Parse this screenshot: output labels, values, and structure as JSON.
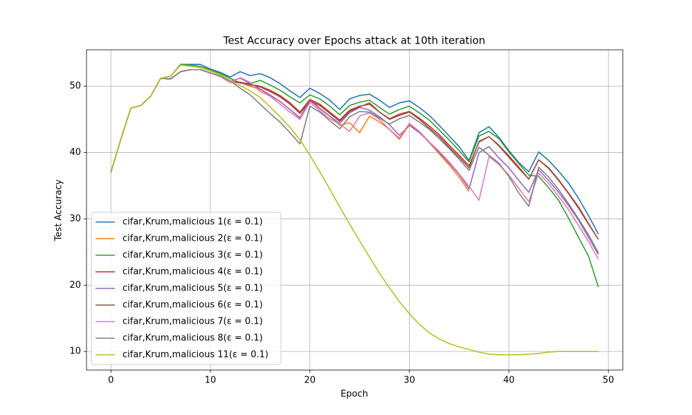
{
  "chart_data": {
    "type": "line",
    "title": "Test Accuracy over Epochs attack at 10th iteration",
    "xlabel": "Epoch",
    "ylabel": "Test Accuracy",
    "x": [
      0,
      1,
      2,
      3,
      4,
      5,
      6,
      7,
      8,
      9,
      10,
      11,
      12,
      13,
      14,
      15,
      16,
      17,
      18,
      19,
      20,
      21,
      22,
      23,
      24,
      25,
      26,
      27,
      28,
      29,
      30,
      31,
      32,
      33,
      34,
      35,
      36,
      37,
      38,
      39,
      40,
      41,
      42,
      43,
      44,
      45,
      46,
      47,
      48,
      49
    ],
    "xlim": [
      -2.45,
      51.45
    ],
    "ylim": [
      7.2,
      55.5
    ],
    "xticks": [
      0,
      10,
      20,
      30,
      40,
      50
    ],
    "yticks": [
      10,
      20,
      30,
      40,
      50
    ],
    "grid": true,
    "legend": "lower left",
    "series": [
      {
        "name": "cifar,Krum,malicious 1(ε = 0.1)",
        "color": "#1f77b4",
        "values": [
          37,
          42,
          46.7,
          47.1,
          48.5,
          51.2,
          51.5,
          53.3,
          53.3,
          53.3,
          52.6,
          52.1,
          51.4,
          52.2,
          51.6,
          51.9,
          51.3,
          50.4,
          49.3,
          48.3,
          49.7,
          48.9,
          47.9,
          46.5,
          48.1,
          48.6,
          48.8,
          47.9,
          46.8,
          47.5,
          47.8,
          46.8,
          45.6,
          44.1,
          42.5,
          40.9,
          38.8,
          43,
          43.9,
          42.3,
          40.3,
          38.5,
          37.1,
          40.1,
          38.8,
          37.2,
          35.4,
          33.1,
          30.5,
          27.7
        ]
      },
      {
        "name": "cifar,Krum,malicious 2(ε = 0.1)",
        "color": "#ff7f0e",
        "values": [
          37,
          42,
          46.7,
          47.1,
          48.5,
          51.2,
          51.1,
          52.2,
          52.5,
          52.5,
          52,
          51.5,
          50.8,
          50.6,
          50,
          49.5,
          48.6,
          47.7,
          46.5,
          45.3,
          48,
          46.7,
          45.5,
          44.1,
          44.5,
          43,
          45.5,
          44.6,
          43.5,
          42,
          44.2,
          43.1,
          41.5,
          39.8,
          38.1,
          36.3,
          34.1,
          null,
          null,
          null,
          null,
          null,
          null,
          null,
          null,
          null,
          null,
          null,
          null,
          null
        ]
      },
      {
        "name": "cifar,Krum,malicious 3(ε = 0.1)",
        "color": "#2ca02c",
        "values": [
          37,
          42,
          46.7,
          47.1,
          48.5,
          51.2,
          51.5,
          53.3,
          53.2,
          53,
          52.5,
          51.9,
          51.2,
          50.5,
          50.4,
          50.9,
          50.2,
          49.4,
          48.4,
          47.5,
          48.7,
          48.1,
          47,
          45.7,
          47.1,
          47.6,
          47.9,
          46.8,
          45.8,
          46.5,
          47,
          46,
          44.9,
          43.4,
          41.9,
          40.3,
          38.6,
          42.5,
          43.2,
          42.1,
          40.1,
          38.3,
          36.6,
          36.4,
          34.7,
          32.8,
          30.1,
          27.2,
          24.4,
          19.7
        ]
      },
      {
        "name": "cifar,Krum,malicious 4(ε = 0.1)",
        "color": "#d62728",
        "values": [
          37,
          42,
          46.7,
          47.1,
          48.5,
          51.2,
          51.1,
          52.2,
          52.5,
          52.5,
          52,
          51.5,
          50.8,
          50.6,
          50.3,
          50,
          49.4,
          48.6,
          47.5,
          46.1,
          48,
          47.3,
          46.1,
          44.9,
          46.4,
          47,
          47.3,
          46.1,
          45.1,
          45.8,
          46.2,
          45.2,
          44,
          42.7,
          41.1,
          39.6,
          38,
          41.6,
          42.4,
          41.1,
          39.5,
          37.8,
          36,
          38.9,
          37.7,
          35.9,
          33.9,
          31.8,
          29.3,
          26.9
        ]
      },
      {
        "name": "cifar,Krum,malicious 5(ε = 0.1)",
        "color": "#9467bd",
        "values": [
          37,
          42,
          46.7,
          47.1,
          48.5,
          51.2,
          51.1,
          52.2,
          52.5,
          52.5,
          52,
          51.5,
          50.8,
          51.2,
          50.4,
          49.6,
          48.7,
          47.7,
          46.5,
          45.2,
          47.9,
          46.6,
          45.5,
          44.4,
          46,
          46.8,
          46.4,
          45.4,
          44.2,
          42.6,
          44.1,
          43,
          41.6,
          40,
          38.4,
          36.7,
          34.5,
          40,
          40.9,
          39.2,
          37.7,
          35.8,
          34,
          37.4,
          35.8,
          34,
          32,
          29.8,
          27.2,
          24.6
        ]
      },
      {
        "name": "cifar,Krum,malicious 6(ε = 0.1)",
        "color": "#8c564b",
        "values": [
          37,
          42,
          46.7,
          47.1,
          48.5,
          51.2,
          51.1,
          52.2,
          52.5,
          52.5,
          52,
          51.5,
          50.8,
          50.5,
          50.2,
          49.9,
          49.2,
          48.4,
          47.3,
          45.9,
          47.8,
          47.1,
          45.9,
          44.7,
          46.2,
          46.9,
          47.5,
          46.1,
          45,
          45.6,
          46.1,
          45,
          43.7,
          42.4,
          40.8,
          39.3,
          37.7,
          41.7,
          42.4,
          41,
          39.3,
          37.6,
          36,
          38.9,
          37.6,
          35.8,
          33.8,
          31.6,
          29.2,
          26.9
        ]
      },
      {
        "name": "cifar,Krum,malicious 7(ε = 0.1)",
        "color": "#e377c2",
        "values": [
          37,
          42,
          46.7,
          47.1,
          48.5,
          51.2,
          51.1,
          52.2,
          52.5,
          52.5,
          52,
          51.5,
          50.5,
          51.3,
          50.6,
          49.2,
          48.5,
          47.3,
          46.1,
          45,
          47.6,
          46.3,
          45.1,
          44.3,
          43.2,
          45.5,
          46,
          45,
          43.5,
          42.2,
          44.4,
          43.2,
          41.6,
          40.2,
          38.6,
          36.8,
          34.9,
          32.8,
          39.4,
          38.2,
          36.6,
          34.6,
          32.6,
          36.9,
          35.3,
          33.4,
          31.4,
          29,
          26.6,
          23.9
        ]
      },
      {
        "name": "cifar,Krum,malicious 8(ε = 0.1)",
        "color": "#7f7f7f",
        "values": [
          37,
          42,
          46.7,
          47.1,
          48.5,
          51.2,
          51.1,
          52.2,
          52.5,
          52.5,
          52,
          51.5,
          50.8,
          49.7,
          48.7,
          47.3,
          45.9,
          44.6,
          43,
          41.3,
          47,
          46.1,
          44.8,
          43.6,
          45.4,
          46.2,
          46.1,
          45.2,
          44.3,
          45.1,
          45.6,
          44.6,
          43.5,
          42.1,
          40.6,
          39,
          37.3,
          40.8,
          39.6,
          38.4,
          36.4,
          33.9,
          31.9,
          37.8,
          36.3,
          34.4,
          32.3,
          30,
          27.6,
          24.9
        ]
      },
      {
        "name": "cifar,Krum,malicious 11(ε = 0.1)",
        "color": "#bcbd22",
        "values": [
          37,
          42,
          46.7,
          47.1,
          48.5,
          51.2,
          51.5,
          53.2,
          53,
          52.8,
          52.3,
          51.7,
          50.9,
          50.1,
          49.3,
          48.3,
          46.9,
          45.4,
          43.8,
          41.9,
          39.6,
          37.1,
          34.5,
          31.8,
          29.2,
          26.7,
          24.2,
          21.8,
          19.6,
          17.5,
          15.7,
          14.1,
          12.8,
          11.9,
          11.2,
          10.7,
          10.3,
          9.9,
          9.6,
          9.5,
          9.5,
          9.5,
          9.6,
          9.7,
          9.9,
          10,
          10,
          10,
          10,
          10
        ]
      }
    ]
  }
}
